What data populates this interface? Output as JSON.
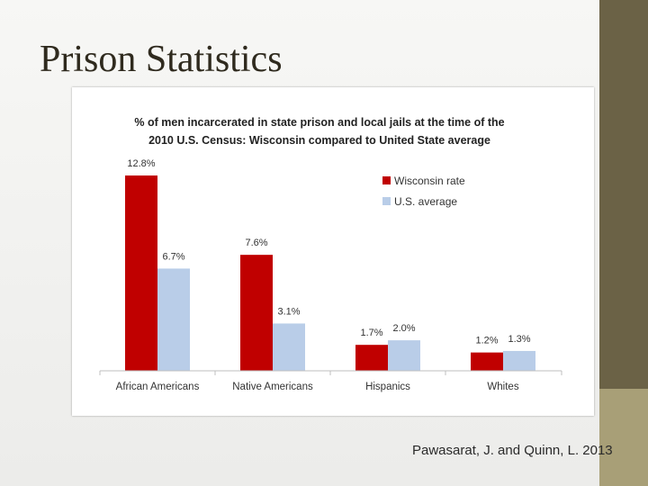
{
  "slide": {
    "title": "Prison Statistics",
    "citation": "Pawasarat, J. and Quinn, L. 2013"
  },
  "colors": {
    "wisconsin": "#c00000",
    "us": "#b9cde8",
    "sidebar_dark": "#6b6246",
    "sidebar_light": "#a89f77"
  },
  "chart_data": {
    "type": "bar",
    "title_lines": [
      "% of men incarcerated  in state prison and local jails at the time of the",
      "2010 U.S. Census: Wisconsin compared to United State average"
    ],
    "categories": [
      "African Americans",
      "Native Americans",
      "Hispanics",
      "Whites"
    ],
    "series": [
      {
        "name": "Wisconsin rate",
        "values": [
          12.8,
          7.6,
          1.7,
          1.2
        ],
        "labels": [
          "12.8%",
          "7.6%",
          "1.7%",
          "1.2%"
        ]
      },
      {
        "name": "U.S. average",
        "values": [
          6.7,
          3.1,
          2.0,
          1.3
        ],
        "labels": [
          "6.7%",
          "3.1%",
          "2.0%",
          "1.3%"
        ]
      }
    ],
    "ylim": [
      0,
      12.8
    ],
    "grid": false,
    "legend": "top-right"
  }
}
